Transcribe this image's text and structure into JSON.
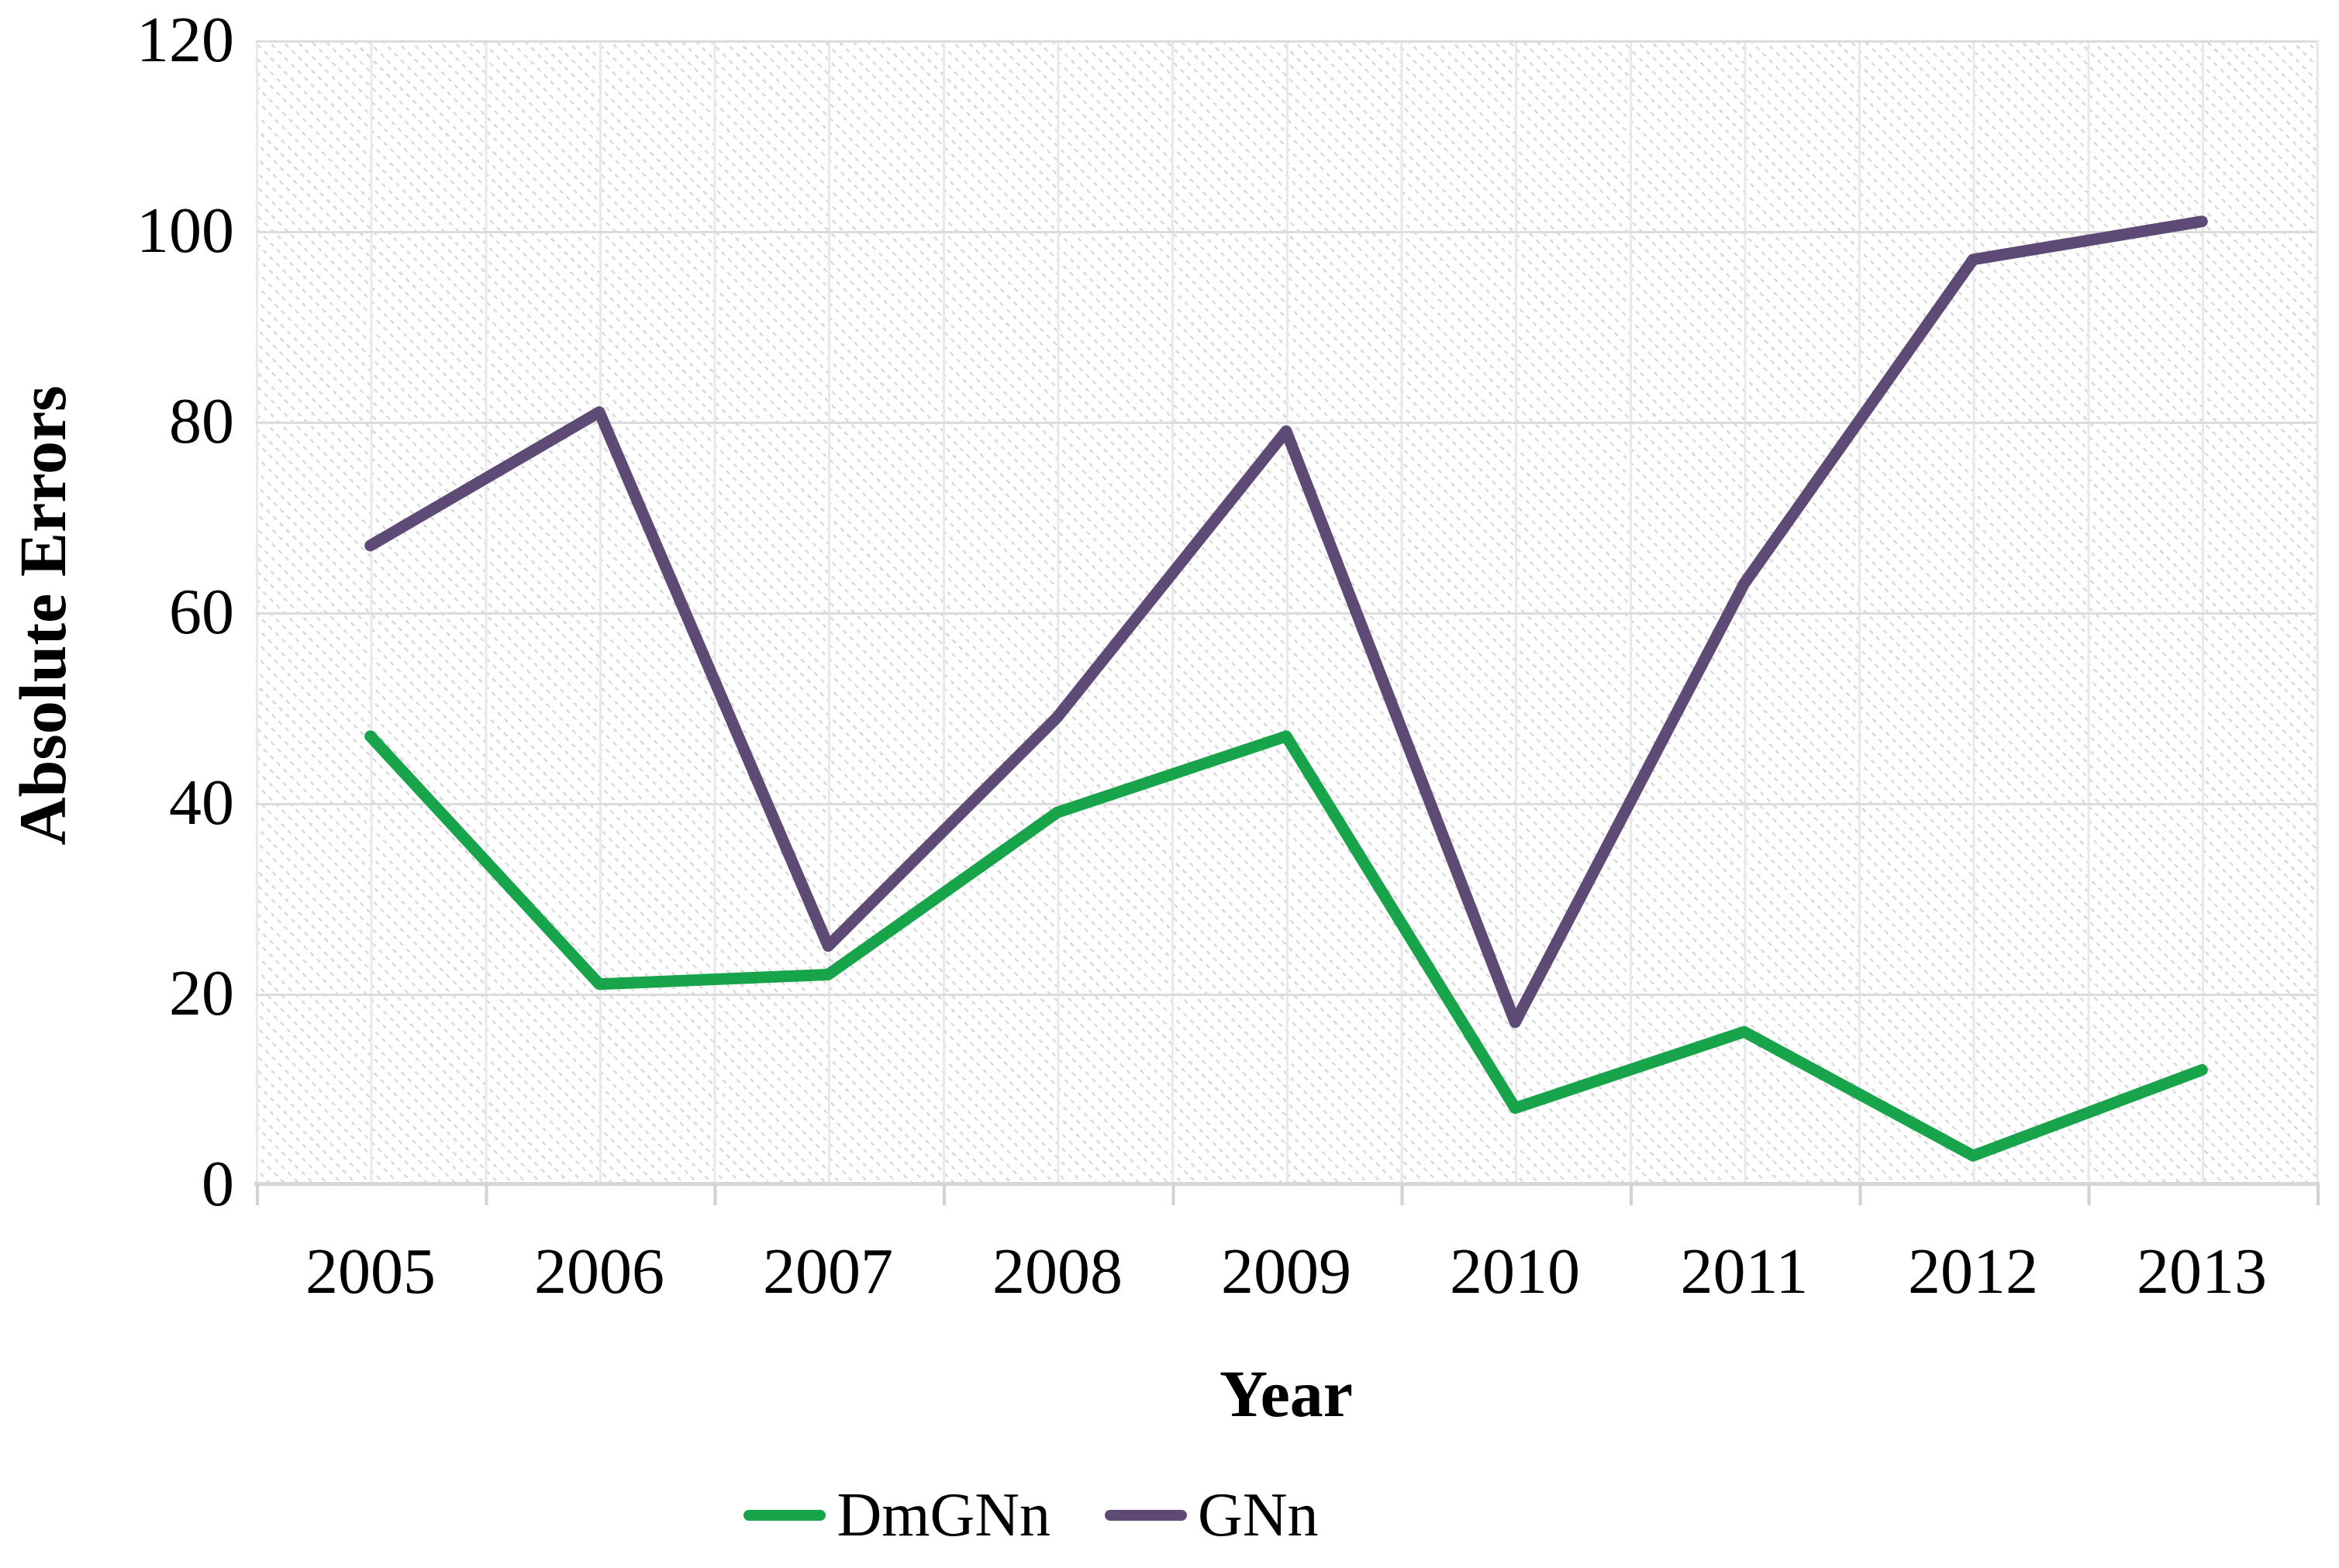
{
  "chart_data": {
    "type": "line",
    "title": "",
    "xlabel": "Year",
    "ylabel": "Absolute Errors",
    "categories": [
      "2005",
      "2006",
      "2007",
      "2008",
      "2009",
      "2010",
      "2011",
      "2012",
      "2013"
    ],
    "y_labels_top_down": [
      "120",
      "100",
      "80",
      "60",
      "40",
      "20",
      "0"
    ],
    "ylim": [
      0,
      120
    ],
    "ytick_step": 20,
    "grid": "on",
    "plot_background": "diagonal-hatch",
    "legend_position": "bottom-center",
    "series": [
      {
        "name": "DmGNn",
        "color": "#17a44b",
        "values": [
          47,
          21,
          22,
          39,
          47,
          8,
          16,
          3,
          12
        ]
      },
      {
        "name": "GNn",
        "color": "#5d4b76",
        "values": [
          67,
          81,
          25,
          49,
          79,
          17,
          63,
          97,
          101
        ]
      }
    ],
    "layout_colors": {
      "axis_line": "#d6d6d6",
      "major_gridline": "#dcdcdc",
      "minor_gridline": "#e9e9e9",
      "tick_label_color": "#000000"
    }
  }
}
